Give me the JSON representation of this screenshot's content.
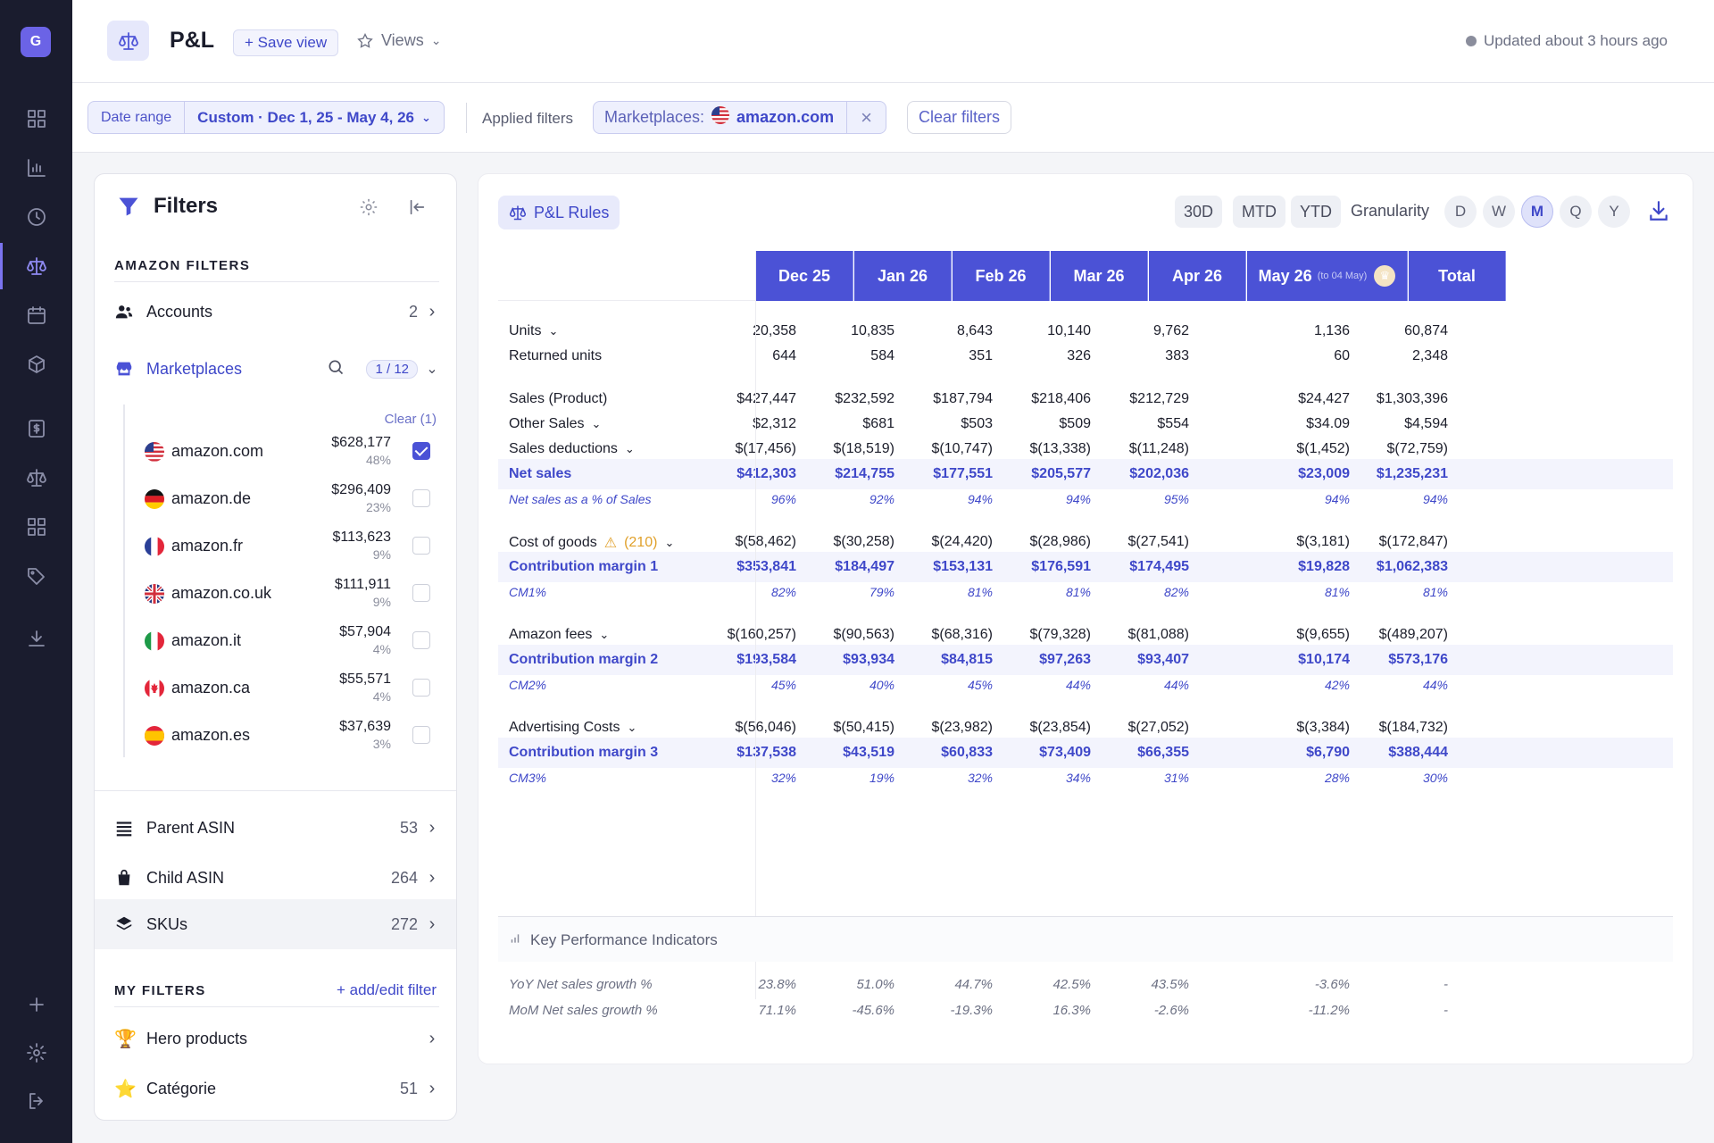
{
  "nav": {
    "logo_letter": "G",
    "icons": [
      "dashboard-icon",
      "bar-chart-icon",
      "clock-icon",
      "scale-icon",
      "calendar-icon",
      "box-icon",
      "dollar-doc-icon",
      "scale-icon",
      "grid-icon",
      "tags-icon",
      "download-icon",
      "plus-icon",
      "gear-icon",
      "logout-icon"
    ],
    "active_icon": "scale-icon"
  },
  "header": {
    "title": "P&L",
    "save_view": "+ Save view",
    "views": "Views",
    "updated": "Updated about 3 hours ago"
  },
  "filterbar": {
    "date_range_label": "Date range",
    "date_range_value": "Custom · Dec 1, 25 - May 4, 26",
    "applied_label": "Applied filters",
    "chip_key": "Marketplaces:",
    "chip_value": "amazon.com",
    "clear_filters": "Clear filters"
  },
  "filters_panel": {
    "title": "Filters",
    "section_amazon": "AMAZON FILTERS",
    "accounts": {
      "label": "Accounts",
      "count": "2"
    },
    "marketplaces": {
      "label": "Marketplaces",
      "badge": "1 / 12"
    },
    "clear_link": "Clear (1)",
    "marketplace_items": [
      {
        "name": "amazon.com",
        "amount": "$628,177",
        "pct": "48%",
        "checked": true,
        "flag": "us"
      },
      {
        "name": "amazon.de",
        "amount": "$296,409",
        "pct": "23%",
        "checked": false,
        "flag": "de"
      },
      {
        "name": "amazon.fr",
        "amount": "$113,623",
        "pct": "9%",
        "checked": false,
        "flag": "fr"
      },
      {
        "name": "amazon.co.uk",
        "amount": "$111,911",
        "pct": "9%",
        "checked": false,
        "flag": "uk"
      },
      {
        "name": "amazon.it",
        "amount": "$57,904",
        "pct": "4%",
        "checked": false,
        "flag": "it"
      },
      {
        "name": "amazon.ca",
        "amount": "$55,571",
        "pct": "4%",
        "checked": false,
        "flag": "ca"
      },
      {
        "name": "amazon.es",
        "amount": "$37,639",
        "pct": "3%",
        "checked": false,
        "flag": "es"
      }
    ],
    "parent_asin": {
      "label": "Parent ASIN",
      "count": "53"
    },
    "child_asin": {
      "label": "Child ASIN",
      "count": "264"
    },
    "skus": {
      "label": "SKUs",
      "count": "272"
    },
    "section_my": "MY FILTERS",
    "add_edit": "+ add/edit filter",
    "hero": {
      "label": "Hero products"
    },
    "categorie": {
      "label": "Catégorie",
      "count": "51"
    }
  },
  "toolbar": {
    "rules": "P&L Rules",
    "ranges": [
      "30D",
      "MTD",
      "YTD"
    ],
    "granularity_label": "Granularity",
    "granularity_options": [
      "D",
      "W",
      "M",
      "Q",
      "Y"
    ],
    "granularity_selected": "M"
  },
  "table": {
    "columns": [
      "Dec 25",
      "Jan 26",
      "Feb 26",
      "Mar 26",
      "Apr 26",
      "May 26",
      "Total"
    ],
    "partial_note": "(to 04 May)",
    "rows": [
      {
        "label": "Units",
        "dropdown": true,
        "values": [
          "20,358",
          "10,835",
          "8,643",
          "10,140",
          "9,762",
          "1,136",
          "60,874"
        ]
      },
      {
        "label": "Returned units",
        "values": [
          "644",
          "584",
          "351",
          "326",
          "383",
          "60",
          "2,348"
        ]
      },
      {
        "label": "Sales (Product)",
        "values": [
          "$427,447",
          "$232,592",
          "$187,794",
          "$218,406",
          "$212,729",
          "$24,427",
          "$1,303,396"
        ]
      },
      {
        "label": "Other Sales",
        "dropdown": true,
        "values": [
          "$2,312",
          "$681",
          "$503",
          "$509",
          "$554",
          "$34.09",
          "$4,594"
        ]
      },
      {
        "label": "Sales deductions",
        "dropdown": true,
        "values": [
          "$(17,456)",
          "$(18,519)",
          "$(10,747)",
          "$(13,338)",
          "$(11,248)",
          "$(1,452)",
          "$(72,759)"
        ]
      },
      {
        "label": "Net sales",
        "style": "highlight",
        "values": [
          "$412,303",
          "$214,755",
          "$177,551",
          "$205,577",
          "$202,036",
          "$23,009",
          "$1,235,231"
        ]
      },
      {
        "label": "Net sales as a % of Sales",
        "style": "pct",
        "values": [
          "96%",
          "92%",
          "94%",
          "94%",
          "95%",
          "94%",
          "94%"
        ]
      },
      {
        "label": "Cost of goods",
        "warning": "(210)",
        "dropdown": true,
        "values": [
          "$(58,462)",
          "$(30,258)",
          "$(24,420)",
          "$(28,986)",
          "$(27,541)",
          "$(3,181)",
          "$(172,847)"
        ]
      },
      {
        "label": "Contribution margin 1",
        "style": "highlight",
        "values": [
          "$353,841",
          "$184,497",
          "$153,131",
          "$176,591",
          "$174,495",
          "$19,828",
          "$1,062,383"
        ]
      },
      {
        "label": "CM1%",
        "style": "pct",
        "values": [
          "82%",
          "79%",
          "81%",
          "81%",
          "82%",
          "81%",
          "81%"
        ]
      },
      {
        "label": "Amazon fees",
        "dropdown": true,
        "values": [
          "$(160,257)",
          "$(90,563)",
          "$(68,316)",
          "$(79,328)",
          "$(81,088)",
          "$(9,655)",
          "$(489,207)"
        ]
      },
      {
        "label": "Contribution margin 2",
        "style": "highlight",
        "values": [
          "$193,584",
          "$93,934",
          "$84,815",
          "$97,263",
          "$93,407",
          "$10,174",
          "$573,176"
        ]
      },
      {
        "label": "CM2%",
        "style": "pct",
        "values": [
          "45%",
          "40%",
          "45%",
          "44%",
          "44%",
          "42%",
          "44%"
        ]
      },
      {
        "label": "Advertising Costs",
        "dropdown": true,
        "values": [
          "$(56,046)",
          "$(50,415)",
          "$(23,982)",
          "$(23,854)",
          "$(27,052)",
          "$(3,384)",
          "$(184,732)"
        ]
      },
      {
        "label": "Contribution margin 3",
        "style": "highlight",
        "values": [
          "$137,538",
          "$43,519",
          "$60,833",
          "$73,409",
          "$66,355",
          "$6,790",
          "$388,444"
        ]
      },
      {
        "label": "CM3%",
        "style": "pct",
        "values": [
          "32%",
          "19%",
          "32%",
          "34%",
          "31%",
          "28%",
          "30%"
        ]
      }
    ],
    "kpi_title": "Key Performance Indicators",
    "kpi_rows": [
      {
        "label": "YoY Net sales growth %",
        "values": [
          "23.8%",
          "51.0%",
          "44.7%",
          "42.5%",
          "43.5%",
          "-3.6%",
          "-"
        ]
      },
      {
        "label": "MoM Net sales growth %",
        "values": [
          "71.1%",
          "-45.6%",
          "-19.3%",
          "16.3%",
          "-2.6%",
          "-11.2%",
          "-"
        ]
      }
    ]
  }
}
